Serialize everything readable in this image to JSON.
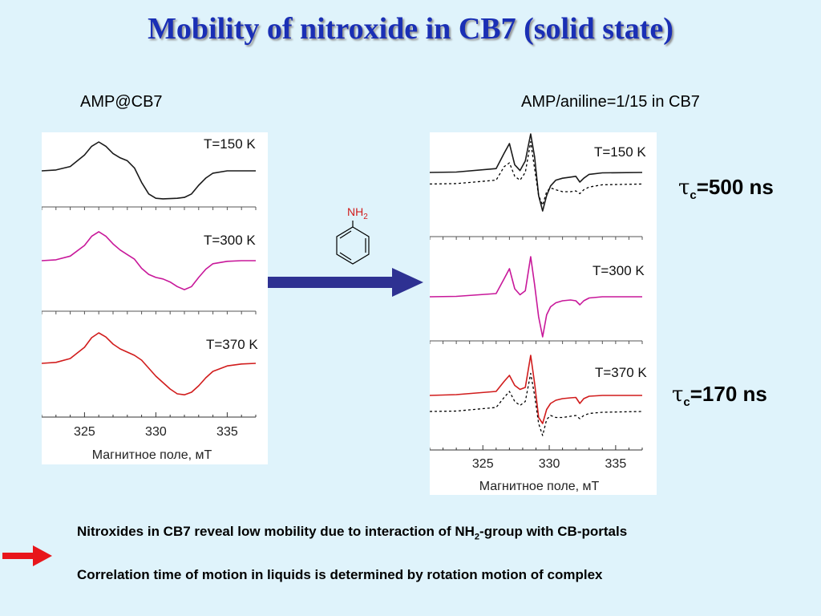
{
  "title": "Mobility of nitroxide in CB7 (solid state)",
  "left_label": "AMP@CB7",
  "right_label": "AMP/aniline=1/15 in CB7",
  "molecule_label": {
    "main": "NH",
    "sub": "2"
  },
  "tau_top": {
    "symbol": "τ",
    "sub": "c",
    "value": "=500 ns"
  },
  "tau_bottom": {
    "symbol": "τ",
    "sub": "c",
    "value": "=170 ns"
  },
  "bullets": [
    {
      "pre": "Nitroxides in CB7 reveal low mobility due to interaction of NH",
      "sub": "2",
      "post": "-group with CB-portals"
    },
    {
      "pre": "Correlation time of motion in liquids is determined by rotation motion of complex",
      "sub": "",
      "post": ""
    }
  ],
  "colors": {
    "title": "#1a2fb5",
    "background": "#dff3fb",
    "trace_150": "#1a1a1a",
    "trace_300": "#c8189a",
    "trace_370": "#d11c1c",
    "simulated": "#000000",
    "arrow_main": "#2e3192",
    "arrow_bullet": "#e8161b"
  },
  "icons": [
    "right-arrow-icon",
    "aniline-molecule-icon",
    "red-arrow-icon"
  ],
  "chart_data": [
    {
      "type": "line",
      "title": "AMP@CB7",
      "xlabel": "Магнитное поле, мТ",
      "ylabel": "",
      "xlim": [
        322,
        337
      ],
      "xticks": [
        325,
        330,
        335
      ],
      "xticklabels": [
        "325",
        "330",
        "335"
      ],
      "series": [
        {
          "name": "T=150 K",
          "color": "#1a1a1a",
          "style": "solid",
          "x": [
            322,
            323,
            324,
            325,
            325.5,
            326,
            326.5,
            327,
            327.5,
            328,
            328.5,
            329,
            329.5,
            330,
            330.5,
            331,
            331.5,
            332,
            332.5,
            333,
            333.5,
            334,
            335,
            336,
            337
          ],
          "y": [
            0,
            0.03,
            0.15,
            0.55,
            0.85,
            1.0,
            0.85,
            0.6,
            0.45,
            0.35,
            0.1,
            -0.4,
            -0.8,
            -0.95,
            -0.97,
            -0.96,
            -0.95,
            -0.92,
            -0.8,
            -0.5,
            -0.25,
            -0.08,
            0,
            0,
            0
          ]
        },
        {
          "name": "T=300 K",
          "color": "#c8189a",
          "style": "solid",
          "x": [
            322,
            323,
            324,
            325,
            325.5,
            326,
            326.5,
            327,
            327.5,
            328,
            328.5,
            329,
            329.5,
            330,
            330.5,
            331,
            331.5,
            332,
            332.5,
            333,
            333.5,
            334,
            335,
            336,
            337
          ],
          "y": [
            0,
            0.03,
            0.15,
            0.5,
            0.8,
            0.95,
            0.8,
            0.55,
            0.35,
            0.2,
            0.05,
            -0.25,
            -0.45,
            -0.55,
            -0.6,
            -0.7,
            -0.85,
            -0.95,
            -0.85,
            -0.55,
            -0.28,
            -0.1,
            -0.02,
            0,
            0
          ]
        },
        {
          "name": "T=370 K",
          "color": "#d11c1c",
          "style": "solid",
          "x": [
            322,
            323,
            324,
            325,
            325.5,
            326,
            326.5,
            327,
            327.5,
            328,
            328.5,
            329,
            329.5,
            330,
            330.5,
            331,
            331.5,
            332,
            332.5,
            333,
            333.5,
            334,
            335,
            336,
            337
          ],
          "y": [
            0,
            0.03,
            0.15,
            0.5,
            0.8,
            0.95,
            0.82,
            0.6,
            0.45,
            0.35,
            0.25,
            0.1,
            -0.15,
            -0.4,
            -0.6,
            -0.8,
            -0.95,
            -0.98,
            -0.9,
            -0.7,
            -0.45,
            -0.25,
            -0.08,
            -0.02,
            0
          ]
        }
      ]
    },
    {
      "type": "line",
      "title": "AMP/aniline=1/15 in CB7",
      "xlabel": "Магнитное поле, мТ",
      "ylabel": "",
      "xlim": [
        321,
        337
      ],
      "xticks": [
        325,
        330,
        335
      ],
      "xticklabels": [
        "325",
        "330",
        "335"
      ],
      "series": [
        {
          "name": "T=150 K",
          "color": "#1a1a1a",
          "style": "solid",
          "x": [
            321,
            323,
            326,
            326.6,
            327,
            327.4,
            327.8,
            328.2,
            328.6,
            328.9,
            329.2,
            329.5,
            329.8,
            330.1,
            330.5,
            331,
            331.6,
            332,
            332.3,
            332.6,
            333,
            334,
            337
          ],
          "y": [
            0,
            0.01,
            0.1,
            0.5,
            0.75,
            0.2,
            0.05,
            0.3,
            1.0,
            0.4,
            -0.6,
            -1.0,
            -0.6,
            -0.35,
            -0.2,
            -0.15,
            -0.12,
            -0.1,
            -0.25,
            -0.15,
            -0.05,
            -0.01,
            0
          ]
        },
        {
          "name": "T=150 K (sim)",
          "color": "#000000",
          "style": "dashed",
          "x": [
            321,
            323,
            326,
            326.6,
            327,
            327.4,
            327.8,
            328.2,
            328.6,
            328.9,
            329.2,
            329.5,
            329.8,
            330.1,
            330.5,
            331,
            331.6,
            332,
            332.3,
            332.6,
            333,
            334,
            337
          ],
          "y": [
            -0.3,
            -0.29,
            -0.2,
            0.15,
            0.25,
            -0.1,
            -0.2,
            0.0,
            0.8,
            0.1,
            -0.6,
            -0.85,
            -0.5,
            -0.4,
            -0.45,
            -0.5,
            -0.5,
            -0.48,
            -0.55,
            -0.45,
            -0.38,
            -0.32,
            -0.3
          ]
        },
        {
          "name": "T=300 K",
          "color": "#c8189a",
          "style": "solid",
          "x": [
            321,
            323,
            326,
            326.6,
            327,
            327.4,
            327.8,
            328.2,
            328.6,
            328.9,
            329.2,
            329.5,
            329.8,
            330.1,
            330.5,
            331,
            331.6,
            332,
            332.3,
            332.6,
            333,
            334,
            337
          ],
          "y": [
            0,
            0.01,
            0.08,
            0.45,
            0.7,
            0.2,
            0.05,
            0.15,
            1.0,
            0.3,
            -0.5,
            -1.0,
            -0.45,
            -0.25,
            -0.15,
            -0.1,
            -0.08,
            -0.1,
            -0.2,
            -0.1,
            -0.03,
            0,
            0
          ]
        },
        {
          "name": "T=370 K",
          "color": "#d11c1c",
          "style": "solid",
          "x": [
            321,
            323,
            326,
            326.6,
            327,
            327.4,
            327.8,
            328.2,
            328.6,
            328.9,
            329.2,
            329.5,
            329.8,
            330.1,
            330.5,
            331,
            331.6,
            332,
            332.3,
            332.6,
            333,
            334,
            337
          ],
          "y": [
            0,
            0.02,
            0.1,
            0.35,
            0.5,
            0.25,
            0.15,
            0.2,
            1.0,
            0.3,
            -0.55,
            -0.7,
            -0.35,
            -0.2,
            -0.12,
            -0.08,
            -0.06,
            -0.05,
            -0.2,
            -0.08,
            -0.02,
            0,
            0
          ]
        },
        {
          "name": "T=370 K (sim)",
          "color": "#000000",
          "style": "dashed",
          "x": [
            321,
            323,
            326,
            326.6,
            327,
            327.4,
            327.8,
            328.2,
            328.6,
            328.9,
            329.2,
            329.5,
            329.8,
            330.1,
            330.5,
            331,
            331.6,
            332,
            332.3,
            332.6,
            333,
            334,
            337
          ],
          "y": [
            -0.4,
            -0.39,
            -0.3,
            -0.05,
            0.1,
            -0.15,
            -0.25,
            -0.15,
            0.55,
            0.0,
            -0.7,
            -1.0,
            -0.6,
            -0.5,
            -0.55,
            -0.55,
            -0.52,
            -0.5,
            -0.58,
            -0.5,
            -0.45,
            -0.42,
            -0.4
          ]
        }
      ]
    }
  ]
}
